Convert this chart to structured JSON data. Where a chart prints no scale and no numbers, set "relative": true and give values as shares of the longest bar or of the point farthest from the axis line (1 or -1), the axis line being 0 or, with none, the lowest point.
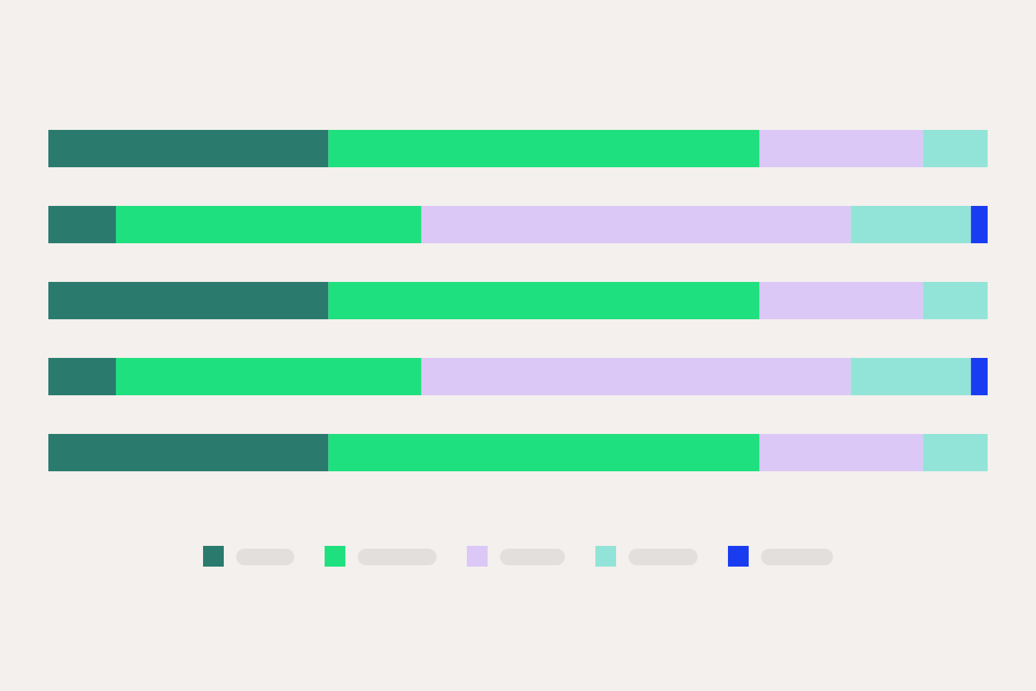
{
  "chart_data": {
    "type": "bar",
    "orientation": "horizontal",
    "stacked": true,
    "relative": true,
    "categories": [
      null,
      null,
      null,
      null,
      null
    ],
    "series": [
      {
        "color": "#2a7a6e",
        "values": [
          0.298,
          0.072,
          0.298,
          0.072,
          0.298
        ]
      },
      {
        "color": "#1fe07e",
        "values": [
          0.459,
          0.325,
          0.459,
          0.325,
          0.459
        ]
      },
      {
        "color": "#dcc8f6",
        "values": [
          0.174,
          0.457,
          0.174,
          0.457,
          0.174
        ]
      },
      {
        "color": "#93e4d8",
        "values": [
          0.069,
          0.128,
          0.069,
          0.128,
          0.069
        ]
      },
      {
        "color": "#1a3cf0",
        "values": [
          0,
          0.018,
          0,
          0.018,
          0
        ]
      }
    ]
  }
}
